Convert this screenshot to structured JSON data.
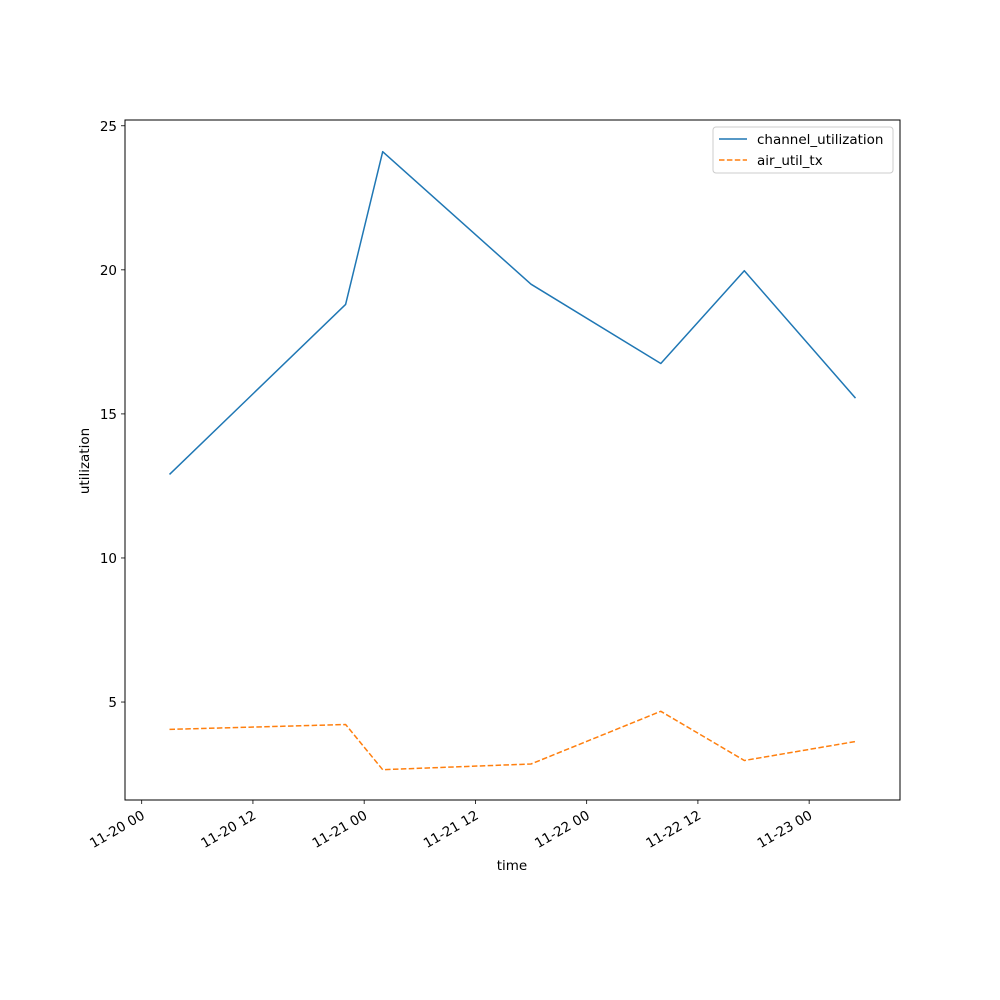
{
  "chart_data": {
    "type": "line",
    "xlabel": "time",
    "ylabel": "utilization",
    "x": [
      "2023-11-20 03:00",
      "2023-11-20 22:00",
      "2023-11-21 02:00",
      "2023-11-21 18:00",
      "2023-11-22 08:00",
      "2023-11-22 17:00",
      "2023-11-23 05:00"
    ],
    "x_tick_labels": [
      "11-20 00",
      "11-20 12",
      "11-21 00",
      "11-21 12",
      "11-22 00",
      "11-22 12",
      "11-23 00"
    ],
    "y_ticks": [
      5,
      10,
      15,
      20,
      25
    ],
    "ylim": [
      1.6,
      25.2
    ],
    "series": [
      {
        "name": "channel_utilization",
        "values": [
          12.9,
          18.8,
          24.1,
          19.5,
          16.75,
          19.97,
          15.55
        ],
        "color": "#1f77b4",
        "style": "solid"
      },
      {
        "name": "air_util_tx",
        "values": [
          4.05,
          4.22,
          2.65,
          2.85,
          4.68,
          2.97,
          3.63
        ],
        "color": "#ff7f0e",
        "style": "dashed"
      }
    ],
    "legend_position": "top-right",
    "grid": false
  }
}
